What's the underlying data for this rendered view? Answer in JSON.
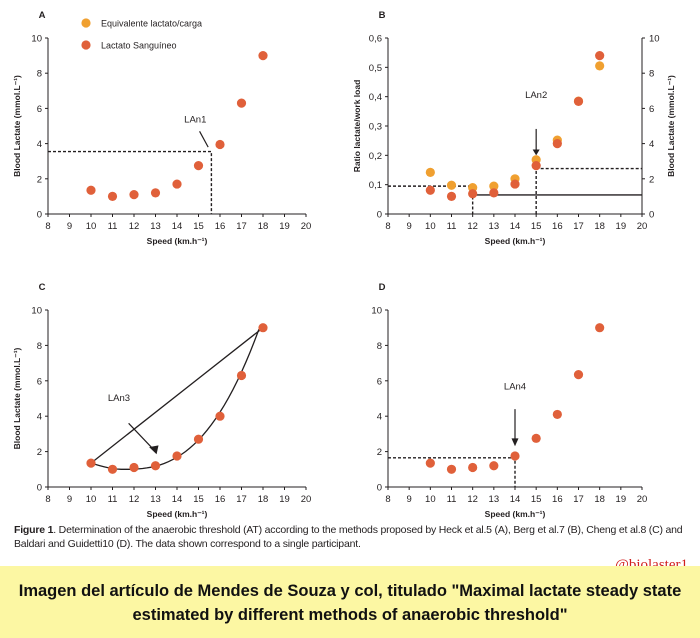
{
  "colors": {
    "orange": "#f0a030",
    "red": "#e0603a",
    "banner": "#fcf7a3",
    "handle": "#d11f1f"
  },
  "legend": {
    "items": [
      "Equivalente lactato/carga",
      "Lactato Sanguíneo"
    ]
  },
  "chart_data": [
    {
      "id": "A",
      "type": "scatter",
      "panel_label": "A",
      "xlabel": "Speed (km.h⁻¹)",
      "ylabel": "Blood Lactate (mmol.L⁻¹)",
      "xlim": [
        8,
        20
      ],
      "ylim": [
        0,
        10
      ],
      "xticks": [
        8,
        9,
        10,
        11,
        12,
        13,
        14,
        15,
        16,
        17,
        18,
        19,
        20
      ],
      "yticks": [
        0,
        2,
        4,
        6,
        8,
        10
      ],
      "series": [
        {
          "name": "Lactato Sanguíneo",
          "color": "red",
          "points": [
            [
              10,
              1.35
            ],
            [
              11,
              1.0
            ],
            [
              12,
              1.1
            ],
            [
              13,
              1.2
            ],
            [
              14,
              1.7
            ],
            [
              15,
              2.75
            ],
            [
              16,
              3.95
            ],
            [
              17,
              6.3
            ],
            [
              18,
              9.0
            ]
          ]
        }
      ],
      "annotations": [
        {
          "text": "LAn1",
          "x": 15.6,
          "y": 3.55
        }
      ]
    },
    {
      "id": "B",
      "type": "scatter",
      "panel_label": "B",
      "xlabel": "Speed (km.h⁻¹)",
      "ylabel": "Ratio lactate/work load",
      "y2label": "Blood Lactate (mmol.L⁻¹)",
      "xlim": [
        8,
        20
      ],
      "ylim": [
        0,
        0.6
      ],
      "y2lim": [
        0,
        10
      ],
      "xticks": [
        8,
        9,
        10,
        11,
        12,
        13,
        14,
        15,
        16,
        17,
        18,
        19,
        20
      ],
      "yticks": [
        "0",
        "0,1",
        "0,2",
        "0,3",
        "0,4",
        "0,5",
        "0,6"
      ],
      "y2ticks": [
        0,
        2,
        4,
        6,
        8,
        10
      ],
      "series": [
        {
          "name": "Equivalente lactato/carga",
          "color": "orange",
          "axis": "y",
          "points": [
            [
              10,
              0.142
            ],
            [
              11,
              0.098
            ],
            [
              12,
              0.09
            ],
            [
              13,
              0.095
            ],
            [
              14,
              0.12
            ],
            [
              15,
              0.185
            ],
            [
              16,
              0.252
            ],
            [
              17,
              0.385
            ],
            [
              18,
              0.505
            ]
          ]
        },
        {
          "name": "Lactato Sanguíneo",
          "color": "red",
          "axis": "y2",
          "points": [
            [
              10,
              1.35
            ],
            [
              11,
              1.0
            ],
            [
              12,
              1.15
            ],
            [
              13,
              1.2
            ],
            [
              14,
              1.7
            ],
            [
              15,
              2.75
            ],
            [
              16,
              4.0
            ],
            [
              17,
              6.4
            ],
            [
              18,
              9.0
            ]
          ]
        }
      ],
      "annotations": [
        {
          "text": "LAn2",
          "x": 15,
          "y": 0.16
        }
      ]
    },
    {
      "id": "C",
      "type": "scatter",
      "panel_label": "C",
      "xlabel": "Speed (km.h⁻¹)",
      "ylabel": "Blood Lactate (mmol.L⁻¹)",
      "xlim": [
        8,
        20
      ],
      "ylim": [
        0,
        10
      ],
      "xticks": [
        8,
        9,
        10,
        11,
        12,
        13,
        14,
        15,
        16,
        17,
        18,
        19,
        20
      ],
      "yticks": [
        0,
        2,
        4,
        6,
        8,
        10
      ],
      "series": [
        {
          "name": "Lactato Sanguíneo",
          "color": "red",
          "points": [
            [
              10,
              1.35
            ],
            [
              11,
              1.0
            ],
            [
              12,
              1.1
            ],
            [
              13,
              1.2
            ],
            [
              14,
              1.75
            ],
            [
              15,
              2.7
            ],
            [
              16,
              4.0
            ],
            [
              17,
              6.3
            ],
            [
              18,
              9.0
            ]
          ]
        }
      ],
      "annotations": [
        {
          "text": "LAn3",
          "x": 13.3,
          "y": 1.9
        }
      ]
    },
    {
      "id": "D",
      "type": "scatter",
      "panel_label": "D",
      "xlabel": "Speed (km.h⁻¹)",
      "ylabel": "",
      "xlim": [
        8,
        20
      ],
      "ylim": [
        0,
        10
      ],
      "xticks": [
        8,
        9,
        10,
        11,
        12,
        13,
        14,
        15,
        16,
        17,
        18,
        19,
        20
      ],
      "yticks": [
        0,
        2,
        4,
        6,
        8,
        10
      ],
      "series": [
        {
          "name": "Lactato Sanguíneo",
          "color": "red",
          "points": [
            [
              10,
              1.35
            ],
            [
              11,
              1.0
            ],
            [
              12,
              1.1
            ],
            [
              13,
              1.2
            ],
            [
              14,
              1.75
            ],
            [
              15,
              2.75
            ],
            [
              16,
              4.1
            ],
            [
              17,
              6.35
            ],
            [
              18,
              9.0
            ]
          ]
        }
      ],
      "annotations": [
        {
          "text": "LAn4",
          "x": 14,
          "y": 1.75
        }
      ]
    }
  ],
  "caption": {
    "label": "Figure 1",
    "text": ". Determination of the anaerobic threshold (AT) according to the methods proposed by Heck et al.5 (A), Berg et al.7 (B), Cheng et al.8 (C) and Baldari and Guidetti10 (D). The data shown correspond to a single participant."
  },
  "handle": "@biolaster1",
  "banner": {
    "text": "Imagen del artículo de Mendes de Souza y col, titulado \"Maximal lactate steady state estimated by different methods of anaerobic threshold\""
  }
}
